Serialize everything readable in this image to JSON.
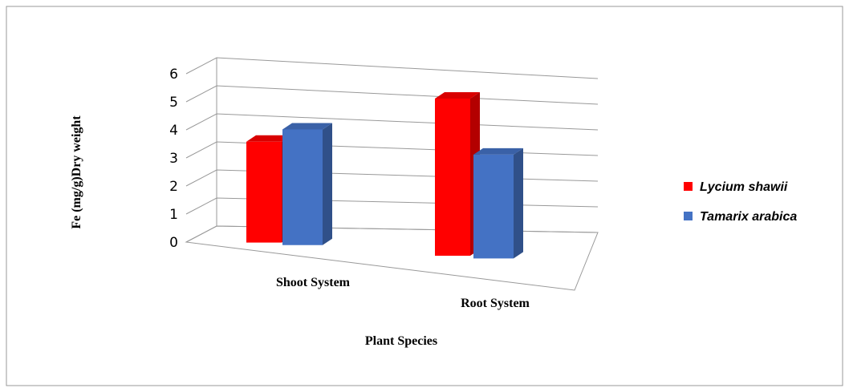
{
  "chart_data": {
    "type": "bar3d",
    "x_label": "Plant Species",
    "y_label": "Fe (mg/g)Dry weight",
    "categories": [
      "Shoot System",
      "Root System"
    ],
    "series": [
      {
        "name": "Lycium shawii",
        "color": "#ff0000",
        "values": [
          3.4,
          5.3
        ]
      },
      {
        "name": "Tamarix arabica",
        "color": "#4472c4",
        "values": [
          3.9,
          3.5
        ]
      }
    ],
    "ylim": [
      0,
      6
    ],
    "yticks": [
      0,
      1,
      2,
      3,
      4,
      5,
      6
    ],
    "grid": true,
    "legend": "right"
  }
}
